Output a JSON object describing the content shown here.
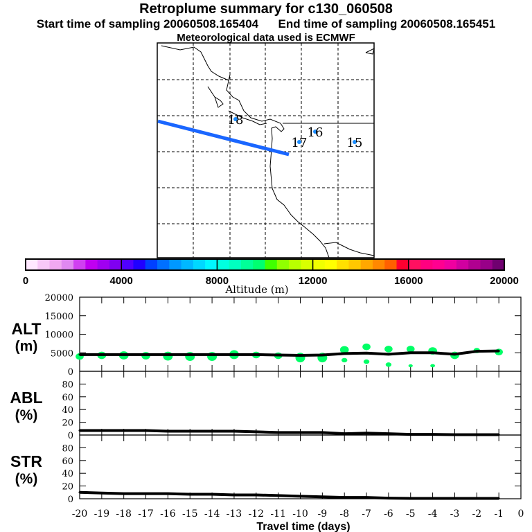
{
  "header": {
    "title": "Retroplume summary for c130_060508",
    "start_label": "Start time of sampling 20060508.165404",
    "end_label": "End time of sampling 20060508.165451",
    "met_label": "Meteorological data used is ECMWF"
  },
  "colors": {
    "trajectory": "#1a66ff",
    "points": "#1a8cff",
    "cluster": "#00ff66",
    "line": "#000000"
  },
  "map": {
    "day_labels": [
      {
        "label": "18",
        "pos": "west-coast"
      },
      {
        "label": "16",
        "pos": "inland"
      },
      {
        "label": "17",
        "pos": "inland"
      },
      {
        "label": "15",
        "pos": "east"
      }
    ]
  },
  "colorbar": {
    "ticks": [
      "0",
      "4000",
      "8000",
      "12000",
      "16000",
      "20000"
    ],
    "label": "Altitude (m)",
    "min": 0,
    "max": 20000,
    "colors": [
      "#ffe8ff",
      "#f8c8f8",
      "#f0a8f0",
      "#e088f0",
      "#d040f0",
      "#c000f0",
      "#a000f0",
      "#8000f0",
      "#5000ff",
      "#2000ff",
      "#0040ff",
      "#0070ff",
      "#0098ff",
      "#00b8ff",
      "#00d8ff",
      "#00f8ff",
      "#00ffe0",
      "#00ffc0",
      "#00ff98",
      "#00ff70",
      "#40ff00",
      "#90ff00",
      "#b8ff00",
      "#d8ff00",
      "#f0ff00",
      "#ffff00",
      "#ffe000",
      "#ffc800",
      "#ffa800",
      "#ff8800",
      "#ff6000",
      "#ff0030",
      "#ff1060",
      "#ff0080",
      "#ff0090",
      "#f000a0",
      "#d000a0",
      "#b00090",
      "#980088",
      "#700070"
    ]
  },
  "chart_data": [
    {
      "type": "line",
      "name": "ALT",
      "ylabel": "ALT\n(m)",
      "ylabel_line1": "ALT",
      "ylabel_line2": "(m)",
      "ylim": [
        0,
        20000
      ],
      "yticks": [
        "0",
        "5000",
        "10000",
        "15000",
        "20000"
      ],
      "x": [
        -20,
        -19,
        -18,
        -17,
        -16,
        -15,
        -14,
        -13,
        -12,
        -11,
        -10,
        -9,
        -8,
        -7,
        -6,
        -5,
        -4,
        -3,
        -2,
        -1
      ],
      "values": [
        4500,
        4500,
        4500,
        4500,
        4500,
        4500,
        4500,
        4500,
        4500,
        4400,
        4300,
        4400,
        4800,
        4900,
        4600,
        5000,
        5000,
        4600,
        5400,
        5500
      ],
      "clusters": [
        [
          -20,
          4000,
          1800
        ],
        [
          -19,
          4300,
          2000
        ],
        [
          -18,
          4300,
          2200
        ],
        [
          -17,
          4200,
          2000
        ],
        [
          -16,
          4100,
          2400
        ],
        [
          -15,
          4000,
          2400
        ],
        [
          -14,
          4000,
          2400
        ],
        [
          -13,
          4500,
          2400
        ],
        [
          -12,
          4400,
          1800
        ],
        [
          -11,
          4200,
          1800
        ],
        [
          -10,
          3700,
          2600
        ],
        [
          -9,
          3700,
          2600
        ],
        [
          -8,
          5800,
          2000
        ],
        [
          -8,
          3000,
          1200
        ],
        [
          -7,
          6600,
          1800
        ],
        [
          -7,
          2600,
          1200
        ],
        [
          -6,
          6000,
          1800
        ],
        [
          -6,
          1800,
          1200
        ],
        [
          -5,
          6000,
          1800
        ],
        [
          -5,
          1500,
          800
        ],
        [
          -4,
          5500,
          2000
        ],
        [
          -4,
          1500,
          900
        ],
        [
          -3,
          4300,
          2000
        ],
        [
          -2,
          5600,
          1400
        ],
        [
          -1,
          5200,
          1800
        ]
      ]
    },
    {
      "type": "line",
      "name": "ABL",
      "ylabel_line1": "ABL",
      "ylabel_line2": "(%)",
      "ylim": [
        0,
        100
      ],
      "yticks": [
        "0",
        "20",
        "40",
        "60",
        "80"
      ],
      "x": [
        -20,
        -19,
        -18,
        -17,
        -16,
        -15,
        -14,
        -13,
        -12,
        -11,
        -10,
        -9,
        -8,
        -7,
        -6,
        -5,
        -4,
        -3,
        -2,
        -1
      ],
      "values": [
        7,
        7,
        7,
        7,
        6,
        6,
        6,
        6,
        5,
        4,
        4,
        4,
        2,
        3,
        2,
        1,
        1,
        0.5,
        0.5,
        0.5
      ]
    },
    {
      "type": "line",
      "name": "STR",
      "ylabel_line1": "STR",
      "ylabel_line2": "(%)",
      "ylim": [
        0,
        100
      ],
      "yticks": [
        "0",
        "20",
        "40",
        "60",
        "80"
      ],
      "x": [
        -20,
        -19,
        -18,
        -17,
        -16,
        -15,
        -14,
        -13,
        -12,
        -11,
        -10,
        -9,
        -8,
        -7,
        -6,
        -5,
        -4,
        -3,
        -2,
        -1
      ],
      "values": [
        10,
        9,
        8,
        8,
        8,
        7,
        7,
        6,
        6,
        5,
        4,
        3,
        2,
        2,
        1,
        0.5,
        0.5,
        0.5,
        0.5,
        0.5
      ]
    }
  ],
  "xaxis": {
    "label": "Travel time (days)",
    "ticks": [
      "-20",
      "-19",
      "-18",
      "-17",
      "-16",
      "-15",
      "-14",
      "-13",
      "-12",
      "-11",
      "-10",
      "-9",
      "-8",
      "-7",
      "-6",
      "-5",
      "-4",
      "-3",
      "-2",
      "-1",
      "0"
    ],
    "xlim": [
      -20,
      0
    ]
  }
}
